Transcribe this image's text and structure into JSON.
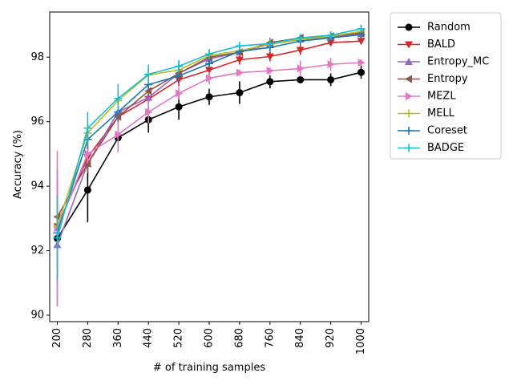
{
  "chart_data": {
    "type": "line",
    "xlabel": "# of training samples",
    "ylabel": "Accuracy (%)",
    "categories": [
      "200",
      "280",
      "360",
      "440",
      "520",
      "600",
      "680",
      "760",
      "840",
      "920",
      "1000"
    ],
    "x": [
      200,
      280,
      360,
      440,
      520,
      600,
      680,
      760,
      840,
      920,
      1000
    ],
    "xlim": [
      180,
      1020
    ],
    "ylim": [
      89.8,
      99.4
    ],
    "yticks": [
      90,
      92,
      94,
      96,
      98
    ],
    "grid": false,
    "legend_position": "outside-right",
    "series": [
      {
        "name": "Random",
        "color": "#000000",
        "marker": "circle",
        "values": [
          92.38,
          93.88,
          95.5,
          96.06,
          96.46,
          96.77,
          96.9,
          97.24,
          97.3,
          97.3,
          97.53
        ],
        "errors": [
          0.15,
          1.0,
          0.3,
          0.4,
          0.4,
          0.25,
          0.35,
          0.2,
          0.1,
          0.2,
          0.2
        ]
      },
      {
        "name": "BALD",
        "color": "#d62728",
        "marker": "triangle-down",
        "values": [
          92.75,
          94.9,
          96.15,
          96.7,
          97.3,
          97.6,
          97.92,
          98.02,
          98.22,
          98.45,
          98.5
        ],
        "errors": [
          0.15,
          0.3,
          0.25,
          0.2,
          0.2,
          0.2,
          0.15,
          0.15,
          0.15,
          0.1,
          0.1
        ]
      },
      {
        "name": "Entropy_MC",
        "color": "#9467bd",
        "marker": "triangle-up",
        "values": [
          92.18,
          94.7,
          96.3,
          96.75,
          97.5,
          97.95,
          98.15,
          98.4,
          98.55,
          98.62,
          98.72
        ],
        "errors": [
          1.9,
          0.3,
          0.3,
          0.2,
          0.15,
          0.15,
          0.1,
          0.1,
          0.1,
          0.1,
          0.1
        ]
      },
      {
        "name": "Entropy",
        "color": "#8c564b",
        "marker": "triangle-left",
        "values": [
          93.05,
          94.7,
          96.15,
          96.95,
          97.5,
          98.0,
          98.15,
          98.45,
          98.6,
          98.65,
          98.75
        ],
        "errors": [
          1.5,
          0.3,
          0.3,
          0.2,
          0.15,
          0.15,
          0.1,
          0.15,
          0.1,
          0.1,
          0.1
        ]
      },
      {
        "name": "MEZL",
        "color": "#e377c2",
        "marker": "triangle-right",
        "values": [
          92.7,
          95.0,
          95.6,
          96.3,
          96.88,
          97.35,
          97.52,
          97.58,
          97.65,
          97.78,
          97.83
        ],
        "errors": [
          2.4,
          0.3,
          0.55,
          0.35,
          0.2,
          0.2,
          0.1,
          0.1,
          0.25,
          0.2,
          0.1
        ]
      },
      {
        "name": "MELL",
        "color": "#bcbd22",
        "marker": "plus",
        "values": [
          92.75,
          95.65,
          96.65,
          97.45,
          97.6,
          98.05,
          98.2,
          98.4,
          98.55,
          98.65,
          98.8
        ],
        "errors": [
          0.6,
          0.3,
          0.3,
          0.2,
          0.2,
          0.15,
          0.15,
          0.1,
          0.1,
          0.1,
          0.1
        ]
      },
      {
        "name": "Coreset",
        "color": "#1f77b4",
        "marker": "plus",
        "values": [
          92.55,
          95.45,
          96.3,
          97.15,
          97.42,
          97.8,
          98.18,
          98.3,
          98.5,
          98.6,
          98.7
        ],
        "errors": [
          0.5,
          0.3,
          0.3,
          0.2,
          0.2,
          0.15,
          0.1,
          0.1,
          0.1,
          0.1,
          0.1
        ]
      },
      {
        "name": "BADGE",
        "color": "#17becf",
        "marker": "plus",
        "values": [
          92.4,
          95.8,
          96.72,
          97.47,
          97.72,
          98.1,
          98.35,
          98.42,
          98.6,
          98.68,
          98.88
        ],
        "errors": [
          1.3,
          0.5,
          0.45,
          0.3,
          0.2,
          0.15,
          0.1,
          0.1,
          0.1,
          0.1,
          0.1
        ]
      }
    ]
  }
}
